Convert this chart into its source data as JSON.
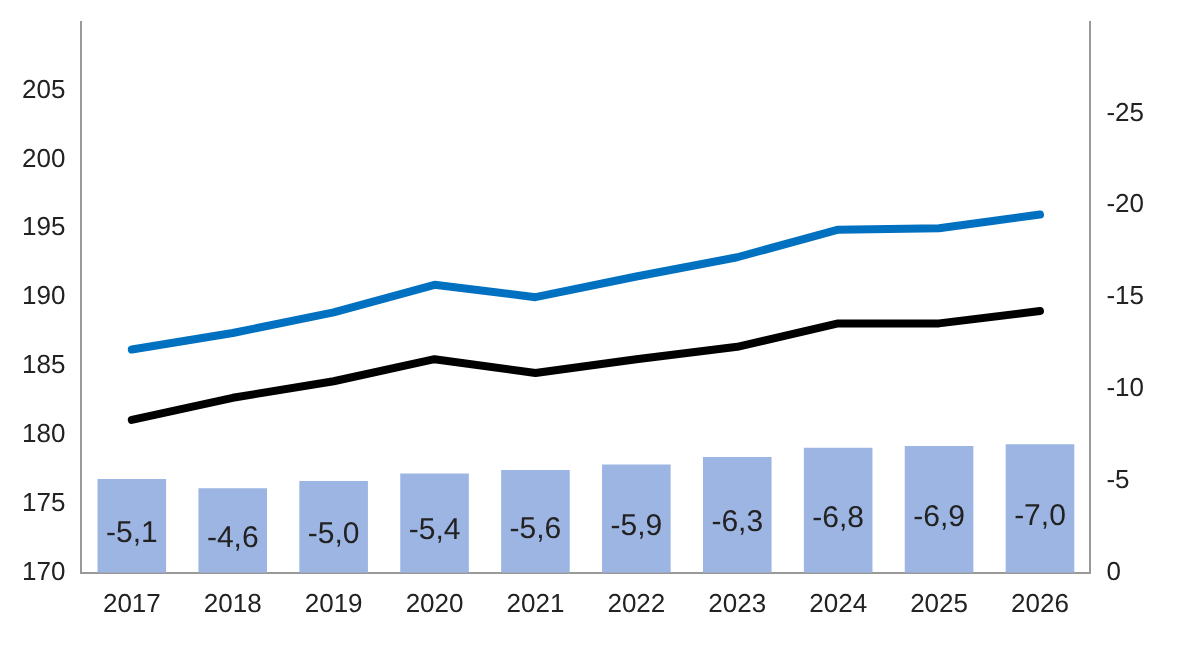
{
  "chart_data": {
    "type": "bar",
    "categories": [
      "2017",
      "2018",
      "2019",
      "2020",
      "2021",
      "2022",
      "2023",
      "2024",
      "2025",
      "2026"
    ],
    "series": [
      {
        "axis": "y2",
        "color": "#9db5e3",
        "values": [
          -5.1,
          -4.6,
          -5.0,
          -5.4,
          -5.6,
          -5.9,
          -6.3,
          -6.8,
          -6.9,
          -7.0
        ],
        "value_labels": [
          "-5,1",
          "-4,6",
          "-5,0",
          "-5,4",
          "-5,6",
          "-5,9",
          "-6,3",
          "-6,8",
          "-6,9",
          "-7,0"
        ]
      },
      {
        "type": "line",
        "color": "#0070c0",
        "values": [
          186.2,
          187.4,
          188.9,
          190.9,
          190.0,
          191.5,
          192.9,
          194.9,
          195.0,
          196.0
        ]
      },
      {
        "type": "line",
        "color": "#000000",
        "values": [
          181.1,
          182.7,
          183.9,
          185.5,
          184.5,
          185.5,
          186.4,
          188.1,
          188.1,
          189.0
        ]
      }
    ],
    "ylim": [
      170,
      210
    ],
    "yticks": [
      170,
      175,
      180,
      185,
      190,
      195,
      200,
      205
    ],
    "y2lim": [
      0,
      -30
    ],
    "y2ticks": [
      0,
      -5,
      -10,
      -15,
      -20,
      -25
    ],
    "grid": false,
    "legend": false,
    "marker": "none",
    "line_style": "solid"
  }
}
